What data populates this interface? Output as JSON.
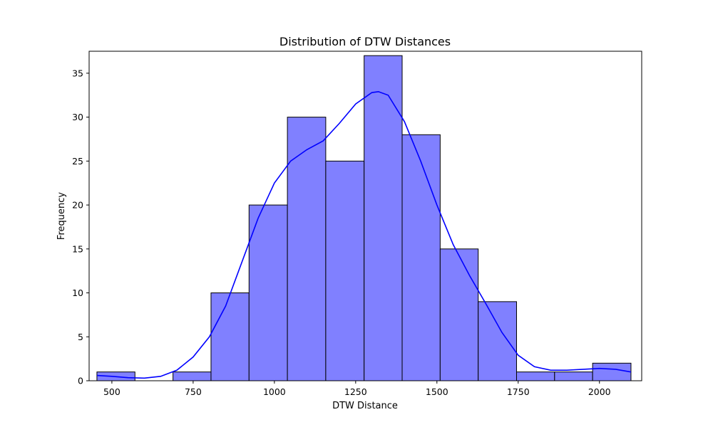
{
  "colors": {
    "bar_fill": "#8080ff",
    "bar_edge": "#000000",
    "kde_line": "#0000ff",
    "background": "#ffffff"
  },
  "chart_data": {
    "type": "bar",
    "subtype": "histogram-with-kde",
    "title": "Distribution of DTW Distances",
    "xlabel": "DTW Distance",
    "ylabel": "Frequency",
    "xlim": [
      430,
      2130
    ],
    "ylim": [
      0,
      37.5
    ],
    "grid": false,
    "legend": "none",
    "xticks": [
      500,
      750,
      1000,
      1250,
      1500,
      1750,
      2000
    ],
    "yticks": [
      0,
      5,
      10,
      15,
      20,
      25,
      30,
      35
    ],
    "bins": [
      {
        "x0": 454,
        "x1": 571,
        "count": 1
      },
      {
        "x0": 571,
        "x1": 688,
        "count": 0
      },
      {
        "x0": 688,
        "x1": 805,
        "count": 1
      },
      {
        "x0": 805,
        "x1": 922,
        "count": 10
      },
      {
        "x0": 922,
        "x1": 1040,
        "count": 20
      },
      {
        "x0": 1040,
        "x1": 1158,
        "count": 30
      },
      {
        "x0": 1158,
        "x1": 1276,
        "count": 25
      },
      {
        "x0": 1276,
        "x1": 1393,
        "count": 37
      },
      {
        "x0": 1393,
        "x1": 1510,
        "count": 28
      },
      {
        "x0": 1510,
        "x1": 1627,
        "count": 15
      },
      {
        "x0": 1627,
        "x1": 1745,
        "count": 9
      },
      {
        "x0": 1745,
        "x1": 1862,
        "count": 1
      },
      {
        "x0": 1862,
        "x1": 1979,
        "count": 1
      },
      {
        "x0": 1979,
        "x1": 2097,
        "count": 2
      }
    ],
    "kde": {
      "x": [
        454,
        500,
        550,
        600,
        650,
        700,
        750,
        800,
        850,
        900,
        950,
        1000,
        1050,
        1100,
        1150,
        1200,
        1250,
        1300,
        1320,
        1350,
        1400,
        1450,
        1500,
        1550,
        1600,
        1650,
        1700,
        1750,
        1800,
        1850,
        1900,
        1950,
        2000,
        2050,
        2097
      ],
      "y": [
        0.6,
        0.5,
        0.35,
        0.3,
        0.5,
        1.2,
        2.7,
        5.0,
        8.5,
        13.5,
        18.5,
        22.5,
        25.0,
        26.3,
        27.3,
        29.3,
        31.5,
        32.8,
        32.9,
        32.5,
        29.5,
        25.0,
        20.0,
        15.5,
        12.0,
        8.8,
        5.5,
        2.9,
        1.6,
        1.2,
        1.2,
        1.3,
        1.4,
        1.3,
        1.0
      ]
    }
  }
}
